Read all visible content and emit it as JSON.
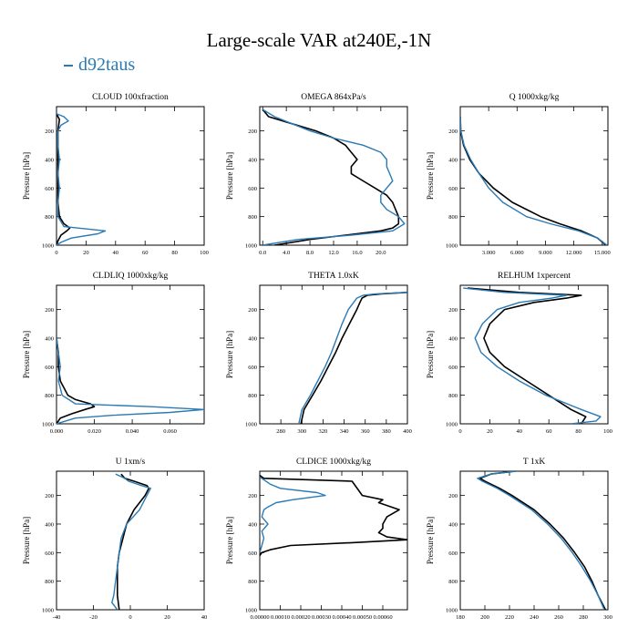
{
  "figure": {
    "title": "Large-scale VAR at240E,-1N",
    "legend": [
      {
        "label": "d92taus",
        "color": "#2a7ab5"
      }
    ],
    "obs_color": "#000000",
    "model_color": "#2a7ab5"
  },
  "chart_data": [
    {
      "type": "line",
      "title": "CLOUD  100xfraction",
      "ylabel": "Pressure [hPa]",
      "ylim": [
        1000,
        30
      ],
      "yticks": [
        200,
        400,
        600,
        800,
        1000
      ],
      "xlim": [
        0,
        100
      ],
      "xticks": [
        0,
        20,
        40,
        60,
        80,
        100
      ],
      "xtick_labels": [
        "0",
        "20",
        "40",
        "60",
        "80",
        "100"
      ],
      "series": [
        {
          "name": "",
          "color": "#000000",
          "p": [
            80,
            120,
            200,
            300,
            400,
            500,
            600,
            700,
            800,
            850,
            880,
            900,
            930,
            970,
            1000
          ],
          "x": [
            0,
            2,
            1,
            1,
            1,
            1,
            1,
            1,
            2,
            5,
            9,
            7,
            3,
            1,
            0
          ]
        },
        {
          "name": "d92taus",
          "color": "#2a7ab5",
          "p": [
            80,
            100,
            130,
            160,
            200,
            300,
            400,
            500,
            600,
            700,
            800,
            870,
            900,
            920,
            950,
            980,
            1000
          ],
          "x": [
            0,
            5,
            8,
            3,
            1,
            1,
            2,
            1,
            2,
            1,
            1,
            5,
            33,
            28,
            10,
            3,
            0
          ]
        }
      ]
    },
    {
      "type": "line",
      "title": "OMEGA  864xPa/s",
      "ylabel": "Pressure [hPa]",
      "ylim": [
        1000,
        30
      ],
      "yticks": [
        200,
        400,
        600,
        800,
        1000
      ],
      "xlim": [
        -0.5,
        24.5
      ],
      "xticks": [
        0,
        4,
        8,
        12,
        16,
        20
      ],
      "xtick_labels": [
        "0.0",
        "4.0",
        "8.0",
        "12.0",
        "16.0",
        "20.0"
      ],
      "series": [
        {
          "name": "",
          "color": "#000000",
          "p": [
            50,
            100,
            150,
            200,
            250,
            300,
            350,
            400,
            450,
            500,
            550,
            600,
            650,
            700,
            750,
            800,
            850,
            880,
            900,
            930,
            960,
            1000
          ],
          "x": [
            0,
            1,
            5,
            9,
            12,
            14,
            15,
            16,
            15,
            15,
            17,
            19,
            21,
            22,
            22.5,
            23,
            23,
            22,
            20,
            14,
            8,
            2
          ]
        },
        {
          "name": "d92taus",
          "color": "#2a7ab5",
          "p": [
            50,
            100,
            150,
            200,
            250,
            300,
            350,
            400,
            450,
            500,
            550,
            600,
            650,
            700,
            750,
            800,
            850,
            900,
            930,
            960,
            1000
          ],
          "x": [
            0,
            2,
            5,
            8,
            12,
            17,
            20,
            21,
            21,
            21.5,
            22,
            21,
            20,
            20,
            21,
            23,
            24,
            22,
            15,
            6,
            0
          ]
        }
      ]
    },
    {
      "type": "line",
      "title": "Q  1000xkg/kg",
      "ylabel": "Pressure [hPa]",
      "ylim": [
        1000,
        30
      ],
      "yticks": [
        200,
        400,
        600,
        800,
        1000
      ],
      "xlim": [
        0,
        15.6
      ],
      "xticks": [
        3,
        6,
        9,
        12,
        15
      ],
      "xtick_labels": [
        "3.000",
        "6.000",
        "9.000",
        "12.000",
        "15.000"
      ],
      "series": [
        {
          "name": "",
          "color": "#000000",
          "p": [
            100,
            200,
            300,
            400,
            500,
            600,
            700,
            800,
            850,
            900,
            950,
            1000
          ],
          "x": [
            0.005,
            0.05,
            0.35,
            1.0,
            2.0,
            3.5,
            5.5,
            8.5,
            10.5,
            12.8,
            14.5,
            15.4
          ]
        },
        {
          "name": "d92taus",
          "color": "#2a7ab5",
          "p": [
            100,
            200,
            300,
            400,
            500,
            600,
            700,
            800,
            850,
            900,
            950,
            1000
          ],
          "x": [
            0.005,
            0.06,
            0.4,
            1.1,
            2.0,
            3.0,
            4.5,
            7.0,
            9.5,
            12.5,
            14.5,
            15.5
          ]
        }
      ]
    },
    {
      "type": "line",
      "title": "CLDLIQ  1000xkg/kg",
      "ylabel": "Pressure [hPa]",
      "ylim": [
        1000,
        30
      ],
      "yticks": [
        200,
        400,
        600,
        800,
        1000
      ],
      "xlim": [
        0,
        0.078
      ],
      "xticks": [
        0,
        0.02,
        0.04,
        0.06
      ],
      "xtick_labels": [
        "0.000",
        "0.020",
        "0.040",
        "0.060"
      ],
      "series": [
        {
          "name": "",
          "color": "#000000",
          "p": [
            400,
            500,
            600,
            700,
            800,
            830,
            860,
            880,
            900,
            930,
            960,
            1000
          ],
          "x": [
            0,
            0.001,
            0.001,
            0.002,
            0.006,
            0.01,
            0.018,
            0.02,
            0.015,
            0.008,
            0.002,
            0
          ]
        },
        {
          "name": "d92taus",
          "color": "#2a7ab5",
          "p": [
            400,
            500,
            600,
            700,
            800,
            860,
            880,
            900,
            920,
            940,
            960,
            1000
          ],
          "x": [
            0,
            0.001,
            0.002,
            0.001,
            0.003,
            0.01,
            0.05,
            0.078,
            0.06,
            0.03,
            0.01,
            0
          ]
        }
      ]
    },
    {
      "type": "line",
      "title": "THETA  1.0xK",
      "ylabel": "Pressure [hPa]",
      "ylim": [
        1000,
        30
      ],
      "yticks": [
        200,
        400,
        600,
        800,
        1000
      ],
      "xlim": [
        260,
        400
      ],
      "xticks": [
        280,
        300,
        320,
        340,
        360,
        380,
        400
      ],
      "xtick_labels": [
        "280",
        "300",
        "320",
        "340",
        "360",
        "380",
        "400"
      ],
      "series": [
        {
          "name": "",
          "color": "#000000",
          "p": [
            80,
            90,
            100,
            120,
            150,
            200,
            300,
            400,
            500,
            600,
            700,
            800,
            900,
            1000
          ],
          "x": [
            400,
            375,
            362,
            357,
            355,
            352,
            345,
            338,
            332,
            325,
            318,
            310,
            302,
            299
          ]
        },
        {
          "name": "d92taus",
          "color": "#2a7ab5",
          "p": [
            80,
            90,
            100,
            120,
            150,
            200,
            300,
            400,
            500,
            600,
            700,
            800,
            900,
            1000
          ],
          "x": [
            400,
            370,
            358,
            352,
            349,
            344,
            338,
            333,
            328,
            322,
            315,
            308,
            300,
            297
          ]
        }
      ]
    },
    {
      "type": "line",
      "title": "RELHUM  1xpercent",
      "ylabel": "Pressure [hPa]",
      "ylim": [
        1000,
        30
      ],
      "yticks": [
        200,
        400,
        600,
        800,
        1000
      ],
      "xlim": [
        0,
        100
      ],
      "xticks": [
        0,
        20,
        40,
        60,
        80,
        100
      ],
      "xtick_labels": [
        "0",
        "20",
        "40",
        "60",
        "80",
        "100"
      ],
      "series": [
        {
          "name": "",
          "color": "#000000",
          "p": [
            50,
            80,
            100,
            120,
            150,
            200,
            300,
            400,
            500,
            600,
            700,
            800,
            900,
            950,
            1000
          ],
          "x": [
            5,
            40,
            82,
            72,
            50,
            30,
            20,
            16,
            20,
            30,
            45,
            60,
            75,
            85,
            82
          ]
        },
        {
          "name": "d92taus",
          "color": "#2a7ab5",
          "p": [
            50,
            80,
            100,
            120,
            150,
            200,
            300,
            400,
            500,
            600,
            700,
            800,
            900,
            950,
            980,
            1000
          ],
          "x": [
            2,
            30,
            72,
            62,
            40,
            25,
            15,
            10,
            14,
            25,
            40,
            58,
            82,
            95,
            92,
            75
          ]
        }
      ]
    },
    {
      "type": "line",
      "title": "U  1xm/s",
      "ylabel": "Pressure [hPa]",
      "ylim": [
        1000,
        30
      ],
      "yticks": [
        200,
        400,
        600,
        800,
        1000
      ],
      "xlim": [
        -40,
        40
      ],
      "xticks": [
        -40,
        -20,
        0,
        20,
        40
      ],
      "xtick_labels": [
        "-40",
        "-20",
        "0",
        "20",
        "40"
      ],
      "series": [
        {
          "name": "",
          "color": "#000000",
          "p": [
            50,
            80,
            100,
            130,
            150,
            200,
            300,
            400,
            500,
            600,
            700,
            800,
            900,
            1000
          ],
          "x": [
            -5,
            -3,
            2,
            9,
            10,
            8,
            2,
            -2,
            -4,
            -6,
            -7,
            -7,
            -7,
            -6
          ]
        },
        {
          "name": "d92taus",
          "color": "#2a7ab5",
          "p": [
            50,
            80,
            100,
            130,
            150,
            200,
            300,
            400,
            500,
            600,
            700,
            800,
            900,
            950,
            1000
          ],
          "x": [
            -8,
            -3,
            -1,
            6,
            11,
            9,
            5,
            -2,
            -5,
            -6,
            -7,
            -8,
            -9,
            -10,
            -7
          ]
        }
      ]
    },
    {
      "type": "line",
      "title": "CLDICE  1000xkg/kg",
      "ylabel": "Pressure [hPa]",
      "ylim": [
        1000,
        30
      ],
      "yticks": [
        200,
        400,
        600,
        800,
        1000
      ],
      "xlim": [
        0,
        0.00072
      ],
      "xticks": [
        0,
        0.0001,
        0.0002,
        0.0003,
        0.0004,
        0.0005,
        0.0006
      ],
      "xtick_labels": [
        "0.00000",
        "0.00010",
        "0.00020",
        "0.00030",
        "0.00040",
        "0.00050",
        "0.00060"
      ],
      "series": [
        {
          "name": "",
          "color": "#000000",
          "p": [
            60,
            80,
            100,
            200,
            230,
            250,
            300,
            350,
            400,
            430,
            460,
            490,
            510,
            530,
            550,
            580,
            600,
            620
          ],
          "x": [
            0,
            2e-05,
            0.00045,
            0.0005,
            0.0006,
            0.00058,
            0.00068,
            0.00062,
            0.0006,
            0.0006,
            0.00058,
            0.00062,
            0.00072,
            0.00045,
            0.00015,
            5e-05,
            1e-05,
            0
          ]
        },
        {
          "name": "d92taus",
          "color": "#2a7ab5",
          "p": [
            70,
            90,
            120,
            150,
            180,
            200,
            230,
            250,
            280,
            300,
            350,
            400,
            450,
            500,
            550,
            600
          ],
          "x": [
            0,
            2e-05,
            5e-05,
            0.0001,
            0.00028,
            0.00032,
            0.00016,
            8e-05,
            4e-05,
            2e-05,
            1e-05,
            4e-05,
            1e-05,
            2e-05,
            1e-05,
            0
          ]
        }
      ]
    },
    {
      "type": "line",
      "title": "T  1xK",
      "ylabel": "Pressure [hPa]",
      "ylim": [
        1000,
        30
      ],
      "yticks": [
        200,
        400,
        600,
        800,
        1000
      ],
      "xlim": [
        180,
        300
      ],
      "xticks": [
        180,
        200,
        220,
        240,
        260,
        280,
        300
      ],
      "xtick_labels": [
        "180",
        "200",
        "220",
        "240",
        "260",
        "280",
        "300"
      ],
      "series": [
        {
          "name": "",
          "color": "#000000",
          "p": [
            30,
            50,
            80,
            100,
            150,
            200,
            300,
            400,
            500,
            600,
            700,
            800,
            900,
            1000
          ],
          "x": [
            225,
            205,
            196,
            200,
            212,
            222,
            240,
            253,
            264,
            273,
            281,
            287,
            292,
            298
          ]
        },
        {
          "name": "d92taus",
          "color": "#2a7ab5",
          "p": [
            30,
            50,
            80,
            100,
            150,
            200,
            300,
            400,
            500,
            600,
            700,
            800,
            900,
            1000
          ],
          "x": [
            225,
            205,
            194,
            198,
            210,
            220,
            238,
            251,
            262,
            271,
            279,
            286,
            292,
            297
          ]
        }
      ]
    }
  ]
}
